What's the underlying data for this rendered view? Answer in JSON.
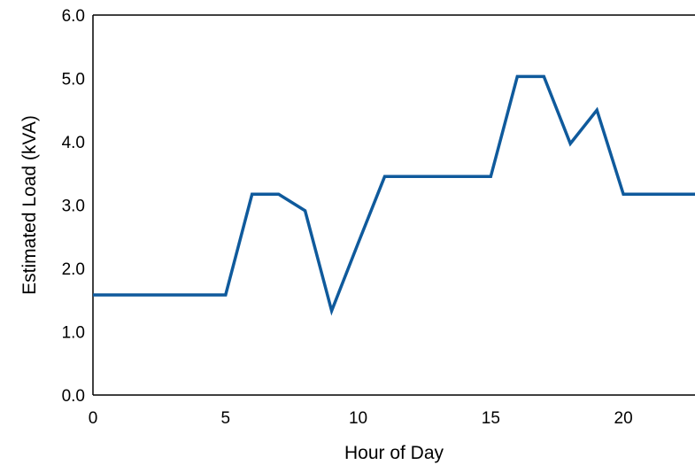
{
  "chart_data": {
    "type": "line",
    "title": "",
    "xlabel": "Hour of Day",
    "ylabel": "Estimated Load (kVA)",
    "xlim": [
      0,
      22.7
    ],
    "ylim": [
      0,
      6
    ],
    "x_ticks": [
      "0",
      "5",
      "10",
      "15",
      "20"
    ],
    "y_ticks": [
      "0.0",
      "1.0",
      "2.0",
      "3.0",
      "4.0",
      "5.0",
      "6.0"
    ],
    "grid": false,
    "legend": "none",
    "series": [
      {
        "color": "#0F5A9C",
        "x": [
          0,
          1,
          2,
          3,
          4,
          5,
          6,
          7,
          8,
          9,
          10,
          11,
          12,
          13,
          14,
          15,
          16,
          17,
          18,
          19,
          20,
          21,
          22,
          22.7
        ],
        "y": [
          1.58,
          1.58,
          1.58,
          1.58,
          1.58,
          1.58,
          3.17,
          3.17,
          2.91,
          1.33,
          2.4,
          3.45,
          3.45,
          3.45,
          3.45,
          3.45,
          5.03,
          5.03,
          3.97,
          4.5,
          3.17,
          3.17,
          3.17,
          3.17
        ]
      }
    ]
  }
}
